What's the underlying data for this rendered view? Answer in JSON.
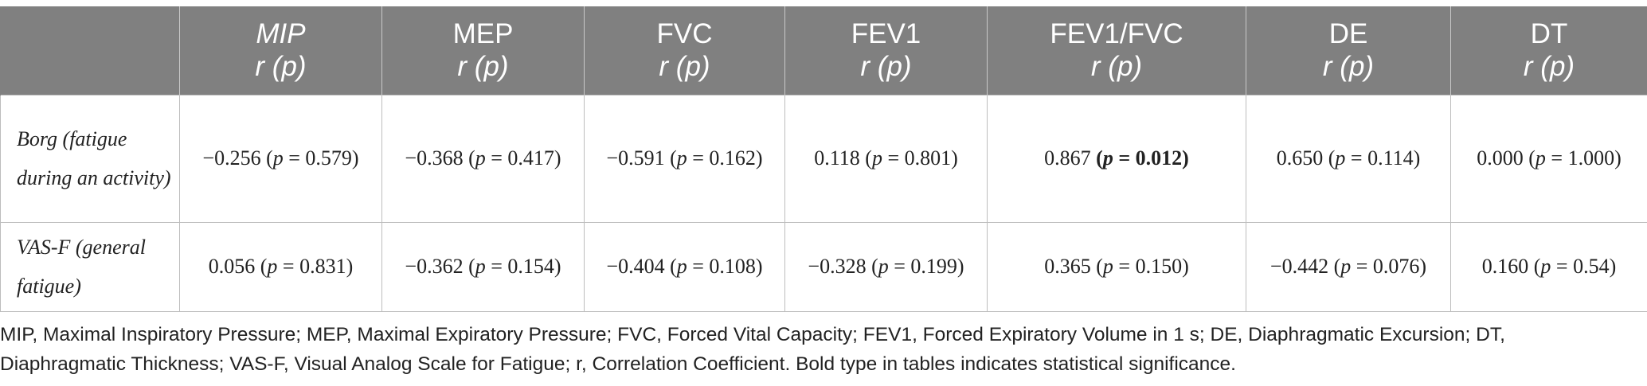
{
  "table": {
    "headers": [
      {
        "name": "",
        "stat": ""
      },
      {
        "name": "MIP",
        "stat": "r (p)"
      },
      {
        "name": "MEP",
        "stat": "r (p)"
      },
      {
        "name": "FVC",
        "stat": "r (p)"
      },
      {
        "name": "FEV1",
        "stat": "r (p)"
      },
      {
        "name": "FEV1/FVC",
        "stat": "r (p)"
      },
      {
        "name": "DE",
        "stat": "r (p)"
      },
      {
        "name": "DT",
        "stat": "r (p)"
      }
    ],
    "rows": [
      {
        "label": "Borg (fatigue during an activity)",
        "cells": [
          {
            "r": "−0.256",
            "p": "0.579",
            "bold": false
          },
          {
            "r": "−0.368",
            "p": "0.417",
            "bold": false
          },
          {
            "r": "−0.591",
            "p": "0.162",
            "bold": false
          },
          {
            "r": "0.118",
            "p": "0.801",
            "bold": false
          },
          {
            "r": "0.867",
            "p": "0.012",
            "bold": true
          },
          {
            "r": "0.650",
            "p": "0.114",
            "bold": false
          },
          {
            "r": "0.000",
            "p": "1.000",
            "bold": false
          }
        ]
      },
      {
        "label": "VAS-F (general fatigue)",
        "cells": [
          {
            "r": "0.056",
            "p": "0.831",
            "bold": false
          },
          {
            "r": "−0.362",
            "p": "0.154",
            "bold": false
          },
          {
            "r": "−0.404",
            "p": "0.108",
            "bold": false
          },
          {
            "r": "−0.328",
            "p": "0.199",
            "bold": false
          },
          {
            "r": "0.365",
            "p": "0.150",
            "bold": false
          },
          {
            "r": "−0.442",
            "p": "0.076",
            "bold": false
          },
          {
            "r": "0.160",
            "p": "0.54",
            "bold": false
          }
        ]
      }
    ],
    "p_symbol": "p",
    "equals": " = "
  },
  "footnote": "MIP, Maximal Inspiratory Pressure; MEP, Maximal Expiratory Pressure; FVC, Forced Vital Capacity; FEV1, Forced Expiratory Volume in 1 s; DE, Diaphragmatic Excursion; DT, Diaphragmatic Thickness; VAS-F, Visual Analog Scale for Fatigue; r, Correlation Coefficient. Bold type in tables indicates statistical significance.",
  "colors": {
    "header_bg": "#808080",
    "header_text": "#ffffff",
    "grid": "#bdbdbd",
    "text": "#222222"
  }
}
